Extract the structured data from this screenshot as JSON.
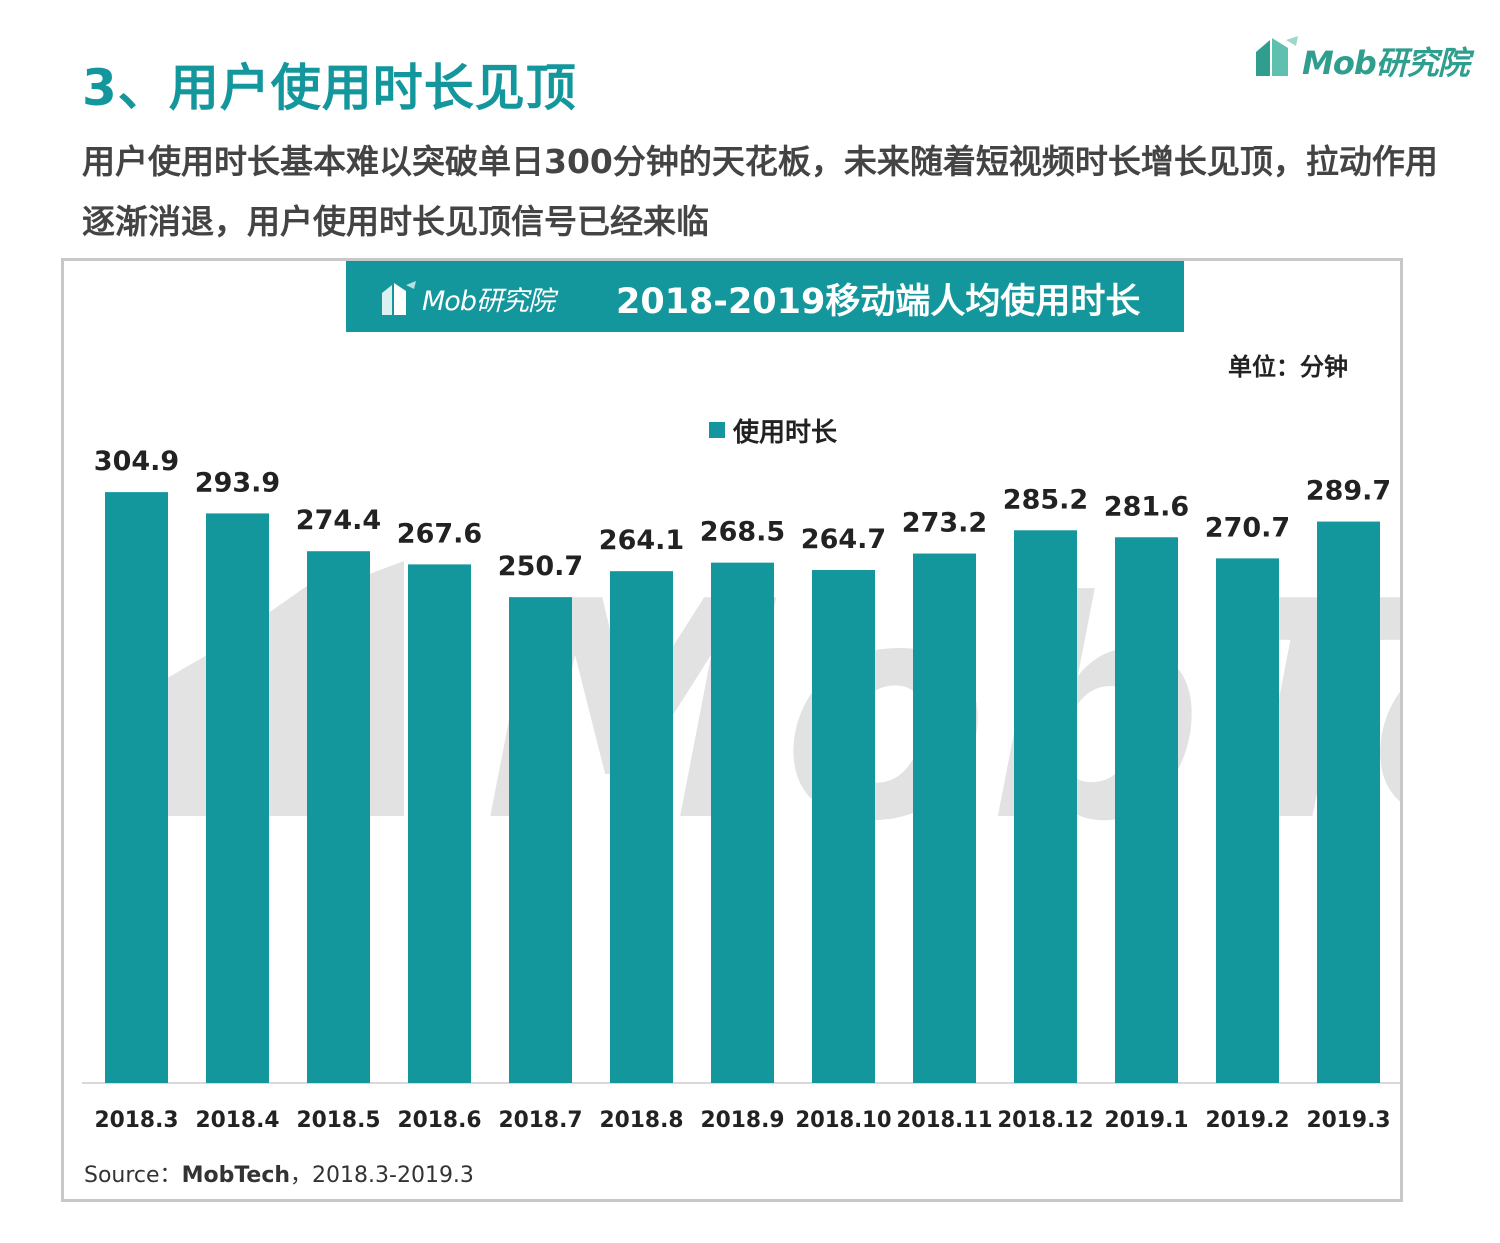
{
  "page": {
    "title": "3、用户使用时长见顶",
    "subtitle": "用户使用时长基本难以突破单日300分钟的天花板，未来随着短视频时长增长见顶，拉动作用逐渐消退，用户使用时长见顶信号已经来临"
  },
  "brand": {
    "logo_text": "Mob研究院",
    "watermark_text": "MobTech",
    "accent_color": "#14979c",
    "logo_color": "#2f9e8f"
  },
  "chart_header": {
    "logo_text": "Mob研究院",
    "title": "2018-2019移动端人均使用时长"
  },
  "unit": "单位：分钟",
  "source": {
    "prefix": "Source：",
    "org": "MobTech",
    "period": "，2018.3-2019.3"
  },
  "chart_data": {
    "type": "bar",
    "title": "2018-2019移动端人均使用时长",
    "xlabel": "",
    "ylabel": "",
    "ylim": [
      0,
      320
    ],
    "grid": false,
    "legend_position": "top-center",
    "categories": [
      "2018.3",
      "2018.4",
      "2018.5",
      "2018.6",
      "2018.7",
      "2018.8",
      "2018.9",
      "2018.10",
      "2018.11",
      "2018.12",
      "2019.1",
      "2019.2",
      "2019.3"
    ],
    "series": [
      {
        "name": "使用时长",
        "color": "#14979c",
        "values": [
          304.9,
          293.9,
          274.4,
          267.6,
          250.7,
          264.1,
          268.5,
          264.7,
          273.2,
          285.2,
          281.6,
          270.7,
          289.7
        ]
      }
    ]
  }
}
